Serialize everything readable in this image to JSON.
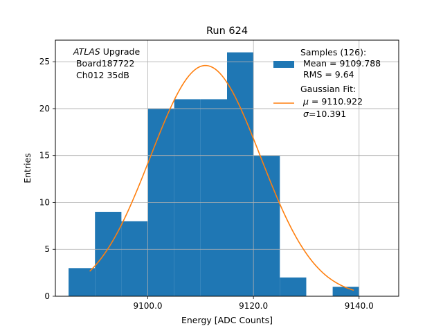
{
  "chart_data": {
    "type": "bar",
    "title": "Run 624",
    "xlabel": "Energy [ADC Counts]",
    "ylabel": "Entries",
    "xlim": [
      9082.5,
      9147.5
    ],
    "ylim": [
      0,
      27.3
    ],
    "grid": true,
    "x_ticks": [
      {
        "value": 9100,
        "label": "9100.0"
      },
      {
        "value": 9120,
        "label": "9120.0"
      },
      {
        "value": 9140,
        "label": "9140.0"
      }
    ],
    "y_ticks": [
      {
        "value": 0,
        "label": "0"
      },
      {
        "value": 5,
        "label": "5"
      },
      {
        "value": 10,
        "label": "10"
      },
      {
        "value": 15,
        "label": "15"
      },
      {
        "value": 20,
        "label": "20"
      },
      {
        "value": 25,
        "label": "25"
      }
    ],
    "bin_edges": [
      9085,
      9090,
      9095,
      9100,
      9105,
      9110,
      9115,
      9120,
      9125,
      9130,
      9135,
      9140,
      9145
    ],
    "counts": [
      3,
      9,
      8,
      20,
      21,
      21,
      26,
      15,
      2,
      0,
      1,
      0
    ],
    "histogram_color": "#1f77b4",
    "fit": {
      "type": "gaussian",
      "amplitude": 24.6,
      "mu": 9110.922,
      "sigma": 10.391,
      "x_range": [
        9089,
        9139
      ],
      "color": "#ff7f0e"
    },
    "annotation": {
      "italic": "ATLAS",
      "rest": " Upgrade",
      "line2": " Board187722",
      "line3": " Ch012 35dB"
    },
    "legend": {
      "position": "top-right",
      "samples_title": "Samples (126):",
      "samples_mean": " Mean = 9109.788",
      "samples_rms": " RMS = 9.64",
      "fit_title": "Gaussian Fit:",
      "fit_mu_symbol": "μ",
      "fit_mu_rest": " = 9110.922",
      "fit_sigma_symbol": "σ",
      "fit_sigma_rest": "=10.391"
    }
  }
}
